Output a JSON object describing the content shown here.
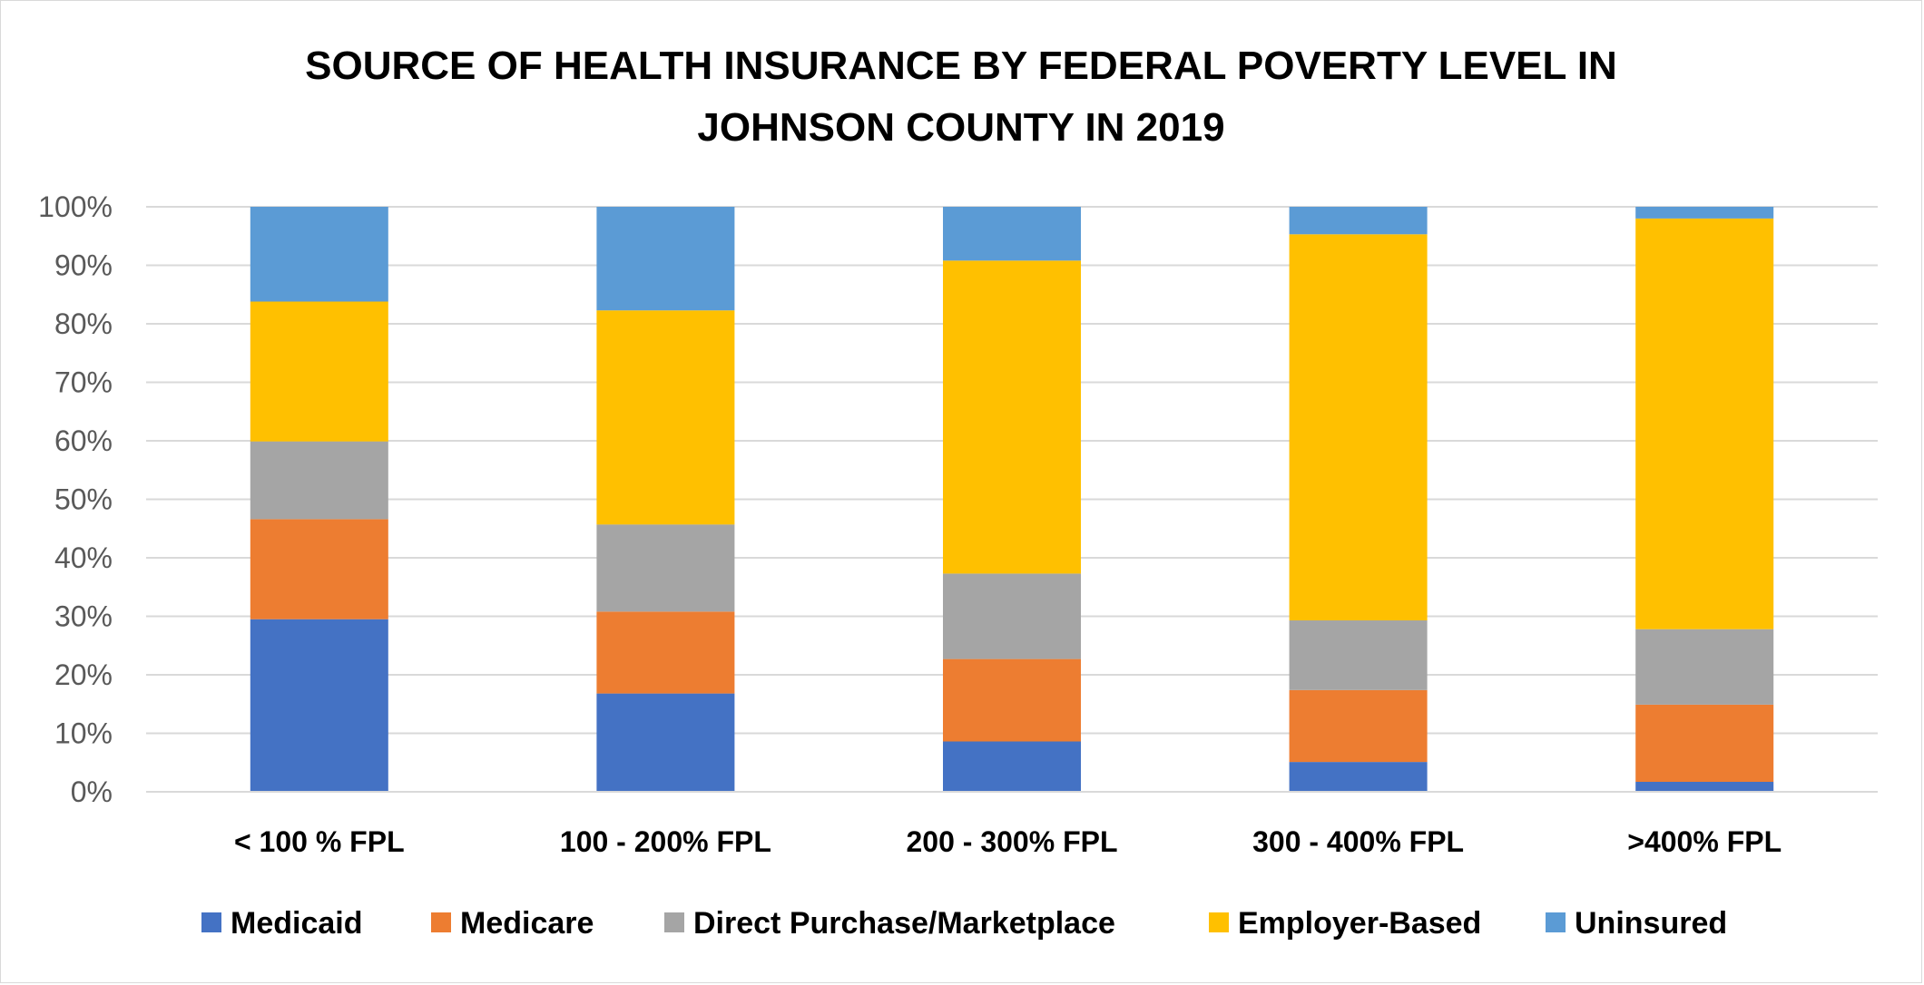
{
  "chart_data": {
    "type": "bar",
    "stacked": true,
    "percent_stacked": true,
    "title_lines": [
      "SOURCE OF  HEALTH INSURANCE BY FEDERAL POVERTY LEVEL IN",
      "JOHNSON COUNTY IN 2019"
    ],
    "title": "SOURCE OF  HEALTH INSURANCE BY FEDERAL POVERTY LEVEL IN JOHNSON COUNTY IN 2019",
    "xlabel": "",
    "ylabel": "",
    "ylim": [
      0,
      100
    ],
    "yticks": [
      "0%",
      "10%",
      "20%",
      "30%",
      "40%",
      "50%",
      "60%",
      "70%",
      "80%",
      "90%",
      "100%"
    ],
    "grid": true,
    "legend_position": "bottom",
    "categories": [
      "< 100 % FPL",
      "100 - 200% FPL",
      "200 - 300% FPL",
      "300 - 400% FPL",
      ">400% FPL"
    ],
    "series": [
      {
        "name": "Medicaid",
        "color": "#4472C4",
        "values": [
          29.5,
          16.8,
          8.6,
          5.1,
          1.7
        ]
      },
      {
        "name": "Medicare",
        "color": "#ED7D31",
        "values": [
          17.1,
          14.0,
          14.1,
          12.3,
          13.2
        ]
      },
      {
        "name": "Direct Purchase/Marketplace",
        "color": "#A5A5A5",
        "values": [
          13.3,
          14.9,
          14.6,
          11.9,
          12.9
        ]
      },
      {
        "name": "Employer-Based",
        "color": "#FFC000",
        "values": [
          23.9,
          36.6,
          53.5,
          66.0,
          70.2
        ]
      },
      {
        "name": "Uninsured",
        "color": "#5B9BD5",
        "values": [
          16.2,
          17.7,
          9.2,
          4.7,
          2.0
        ]
      }
    ]
  }
}
